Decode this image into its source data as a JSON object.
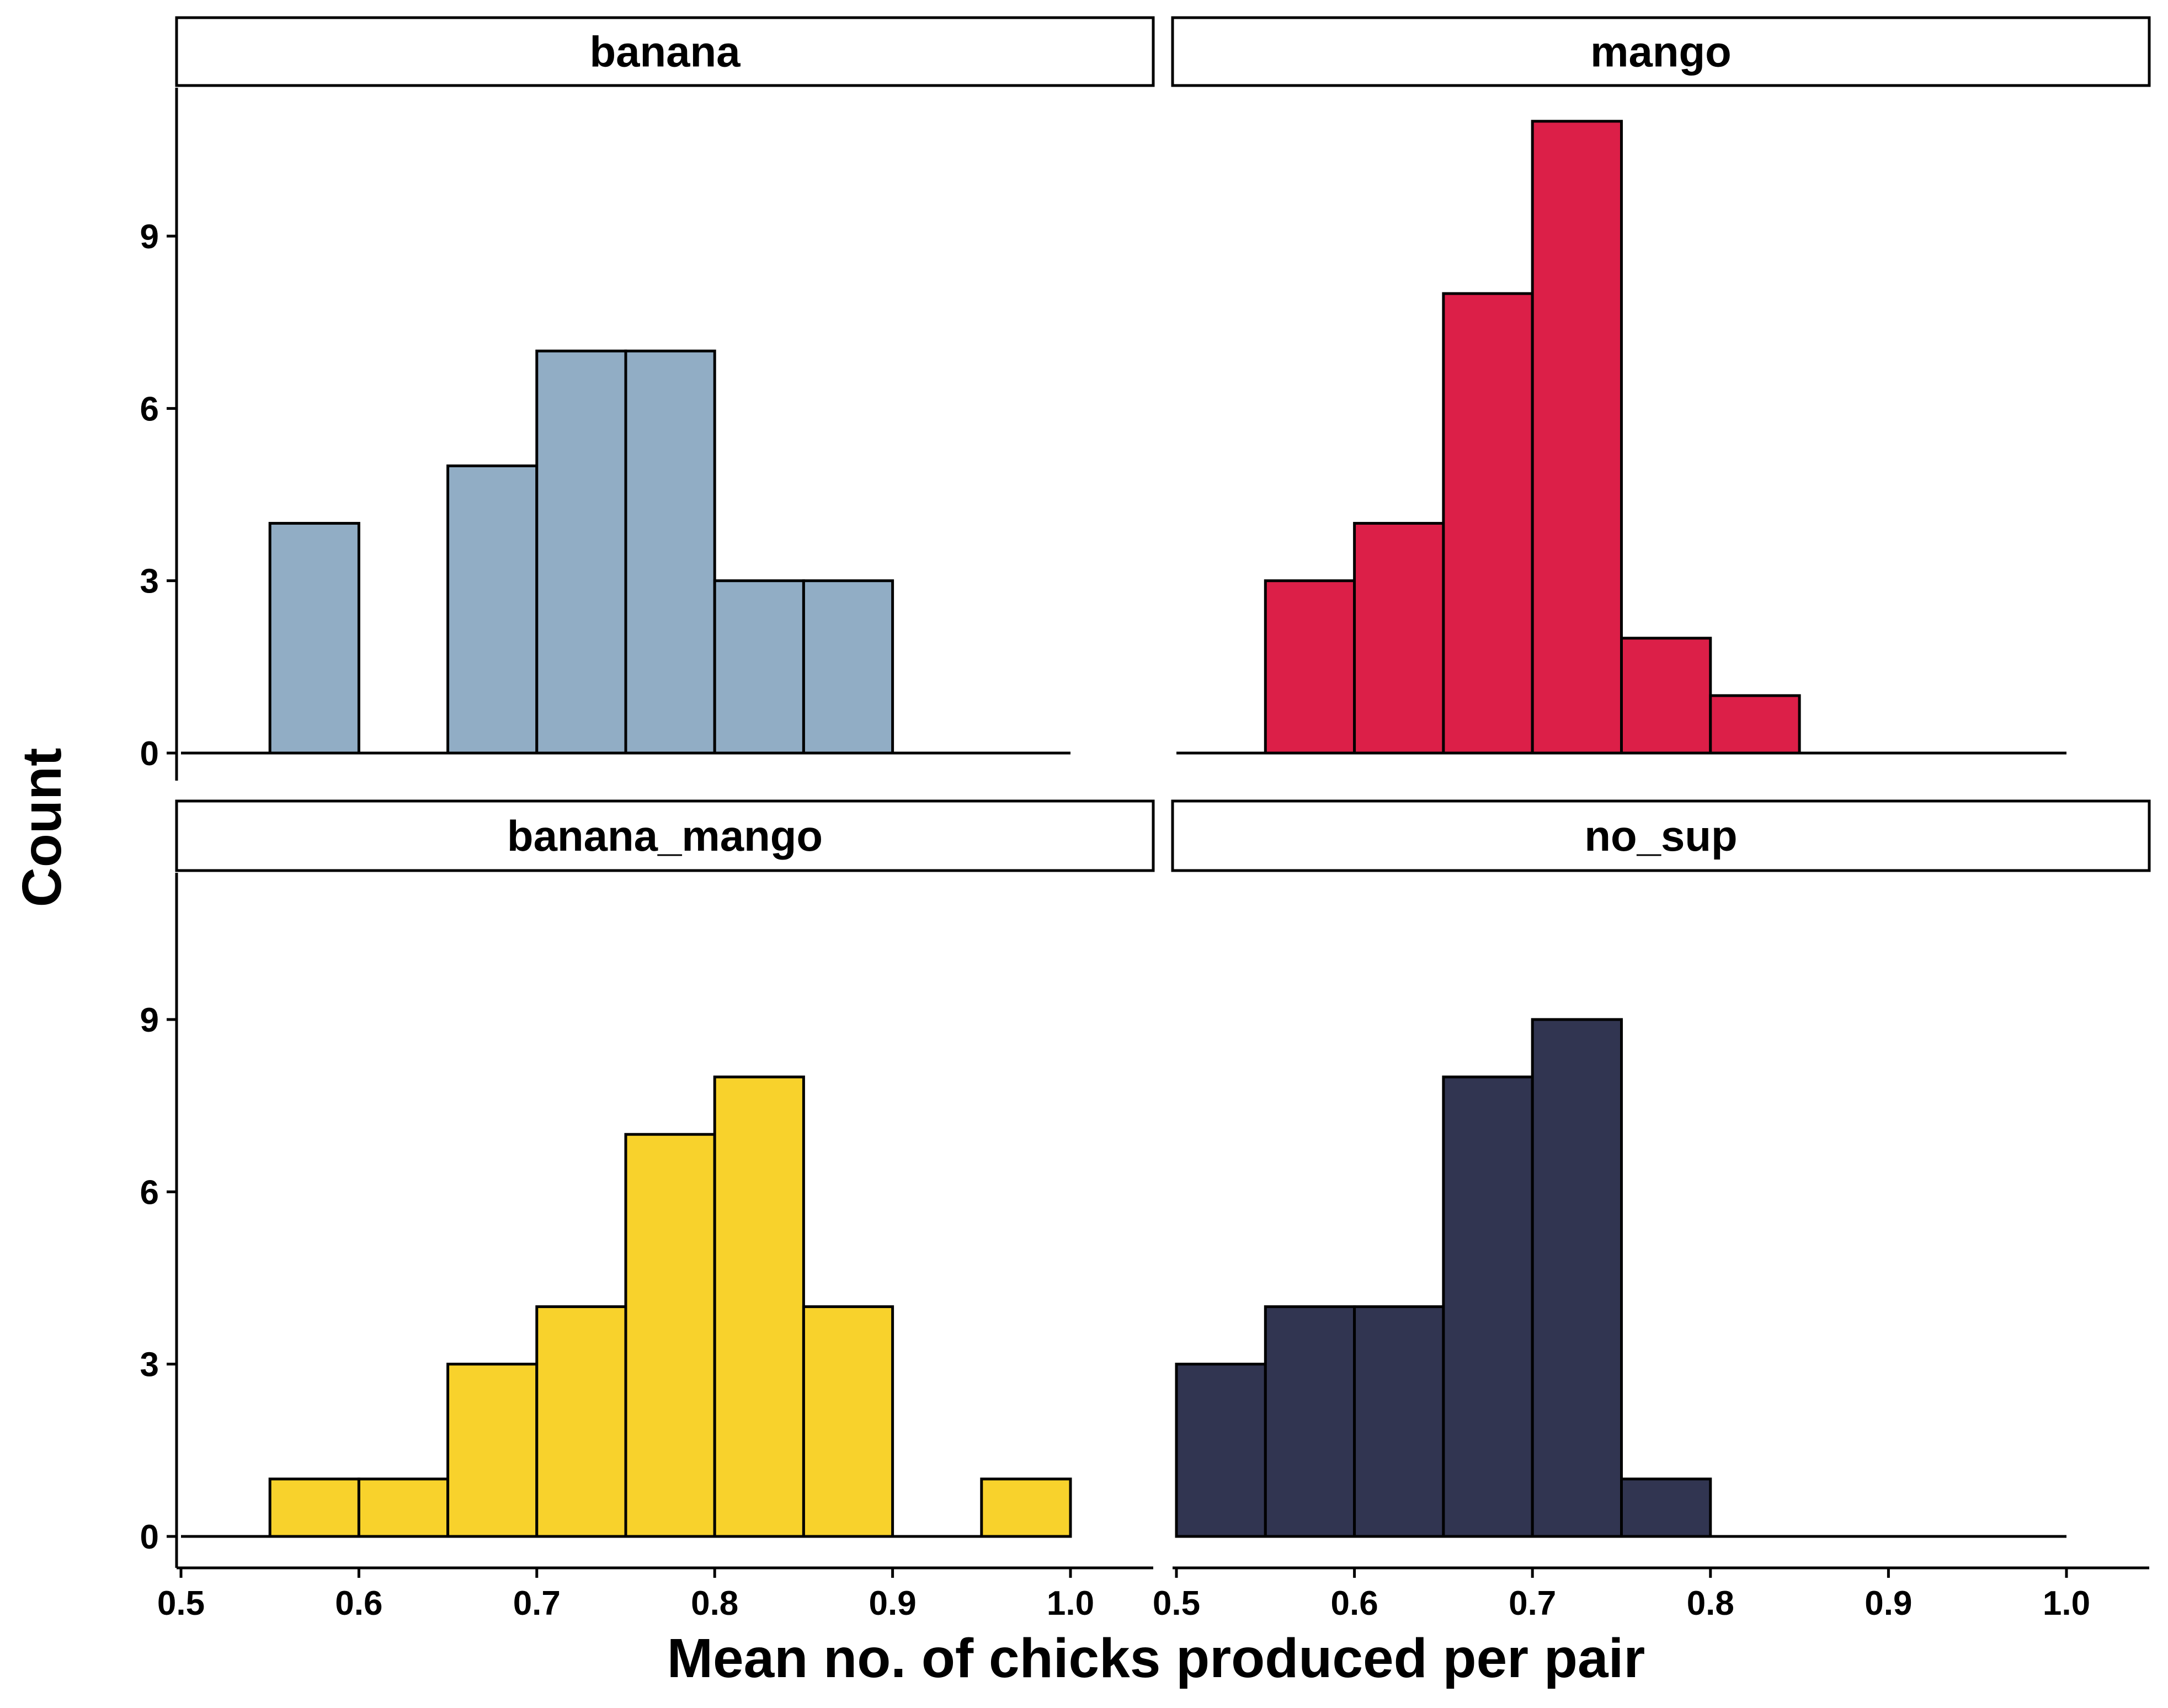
{
  "chart_data": {
    "type": "bar",
    "subtype": "faceted-histogram",
    "xlabel": "Mean no. of chicks produced per pair",
    "ylabel": "Count",
    "xlim": [
      0.5,
      1.0
    ],
    "ylim": [
      0,
      11
    ],
    "x_ticks": [
      "0.5",
      "0.6",
      "0.7",
      "0.8",
      "0.9",
      "1.0"
    ],
    "y_ticks": [
      "0",
      "3",
      "6",
      "9"
    ],
    "bin_width": 0.05,
    "grid": false,
    "legend": "none",
    "panels": [
      {
        "name": "banana",
        "color": "#91adc5",
        "bins": [
          0.525,
          0.575,
          0.625,
          0.675,
          0.725,
          0.775,
          0.825,
          0.875,
          0.925,
          0.975
        ],
        "counts": [
          0,
          4,
          0,
          5,
          7,
          7,
          3,
          3,
          0,
          0
        ]
      },
      {
        "name": "mango",
        "color": "#dc1f48",
        "bins": [
          0.525,
          0.575,
          0.625,
          0.675,
          0.725,
          0.775,
          0.825,
          0.875,
          0.925,
          0.975
        ],
        "counts": [
          0,
          3,
          4,
          8,
          11,
          2,
          1,
          0,
          0,
          0
        ]
      },
      {
        "name": "banana_mango",
        "color": "#f8d22c",
        "bins": [
          0.525,
          0.575,
          0.625,
          0.675,
          0.725,
          0.775,
          0.825,
          0.875,
          0.925,
          0.975
        ],
        "counts": [
          0,
          1,
          1,
          3,
          4,
          7,
          8,
          4,
          0,
          1
        ]
      },
      {
        "name": "no_sup",
        "color": "#313551",
        "bins": [
          0.525,
          0.575,
          0.625,
          0.675,
          0.725,
          0.775,
          0.825,
          0.875,
          0.925,
          0.975
        ],
        "counts": [
          3,
          4,
          4,
          8,
          9,
          1,
          0,
          0,
          0,
          0
        ]
      }
    ]
  }
}
